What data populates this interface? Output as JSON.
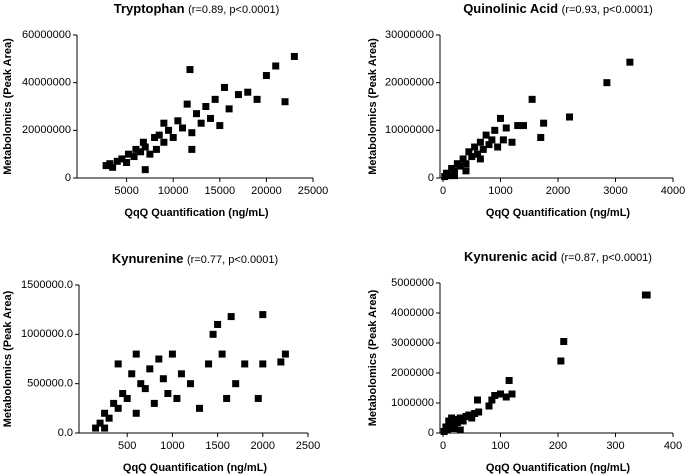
{
  "chart_data": [
    {
      "type": "scatter",
      "title": "Tryptophan",
      "subtitle": "(r=0.89, p<0.0001)",
      "x_label": "QqQ Quantification (ng/mL)",
      "y_label": "Metabolomics (Peak Area)",
      "xlim": [
        0,
        25000
      ],
      "xticks": [
        5000,
        10000,
        15000,
        20000,
        25000
      ],
      "ylim": [
        0,
        60000000
      ],
      "yticks": [
        0,
        20000000,
        40000000,
        60000000
      ],
      "color": "#000000",
      "x": [
        2800,
        3200,
        3500,
        4000,
        4500,
        5000,
        5200,
        5800,
        6000,
        6500,
        6800,
        7000,
        7500,
        8000,
        8200,
        8500,
        9000,
        9500,
        10000,
        10500,
        11000,
        11500,
        11800,
        12000,
        12500,
        13000,
        13500,
        14000,
        14500,
        15000,
        15500,
        16000,
        17000,
        18000,
        19000,
        20000,
        21000,
        22000,
        23000,
        7000,
        12000,
        9000
      ],
      "y": [
        5200000,
        6000000,
        4500000,
        7000000,
        8000000,
        6500000,
        10000000,
        9000000,
        12000000,
        11000000,
        15000000,
        13000000,
        10000000,
        17000000,
        12000000,
        18000000,
        15000000,
        20000000,
        17000000,
        24000000,
        21000000,
        31000000,
        45500000,
        19000000,
        27000000,
        23000000,
        30000000,
        25000000,
        33000000,
        22000000,
        38000000,
        29000000,
        35000000,
        36000000,
        33000000,
        43000000,
        47000000,
        32000000,
        51000000,
        3500000,
        12000000,
        23000000
      ]
    },
    {
      "type": "scatter",
      "title": "Quinolinic Acid",
      "subtitle": "(r=0.93, p<0.0001)",
      "x_label": "QqQ Quantification (ng/mL)",
      "y_label": "Metabolomics (Peak Area)",
      "xlim": [
        0,
        4000
      ],
      "xticks": [
        0,
        1000,
        2000,
        3000,
        4000
      ],
      "ylim": [
        0,
        30000000
      ],
      "yticks": [
        0,
        10000000,
        20000000,
        30000000
      ],
      "color": "#000000",
      "x": [
        30,
        60,
        100,
        150,
        200,
        250,
        300,
        350,
        400,
        450,
        500,
        550,
        600,
        650,
        700,
        750,
        800,
        850,
        900,
        950,
        1000,
        1050,
        1100,
        1200,
        1300,
        1400,
        1550,
        1700,
        1750,
        2200,
        2850,
        3250,
        200,
        400,
        650
      ],
      "y": [
        300000,
        1000000,
        500000,
        2000000,
        1500000,
        3000000,
        2500000,
        4000000,
        3000000,
        5500000,
        4500000,
        6500000,
        5000000,
        7500000,
        6000000,
        9000000,
        7000000,
        8000000,
        10000000,
        6500000,
        12500000,
        8000000,
        10500000,
        7500000,
        11000000,
        11000000,
        16500000,
        8500000,
        11500000,
        12800000,
        20000000,
        24300000,
        500000,
        1500000,
        4000000
      ]
    },
    {
      "type": "scatter",
      "title": "Kynurenine",
      "subtitle": "(r=0.77, p<0.0001)",
      "x_label": "QqQ Quantification (ng/mL)",
      "y_label": "Metabolomics (Peak Area)",
      "xlim": [
        0,
        2500
      ],
      "xticks": [
        500,
        1000,
        1500,
        2000,
        2500
      ],
      "ylim": [
        0,
        1500000
      ],
      "yticks": [
        {
          "value": 0,
          "label": "0.0"
        },
        {
          "value": 500000,
          "label": "500000.0"
        },
        {
          "value": 1000000,
          "label": "1000000.0"
        },
        {
          "value": 1500000,
          "label": "1500000.0"
        }
      ],
      "color": "#000000",
      "x": [
        150,
        200,
        250,
        300,
        350,
        400,
        450,
        500,
        550,
        600,
        650,
        700,
        750,
        800,
        850,
        900,
        950,
        1000,
        1050,
        1100,
        1200,
        1300,
        1400,
        1450,
        1500,
        1550,
        1600,
        1650,
        1700,
        1800,
        1950,
        2000,
        2000,
        2200,
        2250,
        400,
        600,
        250
      ],
      "y": [
        50000,
        100000,
        200000,
        150000,
        300000,
        250000,
        400000,
        350000,
        600000,
        200000,
        500000,
        450000,
        650000,
        300000,
        750000,
        550000,
        400000,
        800000,
        350000,
        600000,
        500000,
        250000,
        700000,
        1000000,
        1100000,
        800000,
        350000,
        1180000,
        500000,
        700000,
        350000,
        1200000,
        700000,
        720000,
        800000,
        700000,
        800000,
        50000
      ]
    },
    {
      "type": "scatter",
      "title": "Kynurenic acid",
      "subtitle": "(r=0.87, p<0.0001)",
      "x_label": "QqQ Quantification (ng/mL)",
      "y_label": "Metabolomics (Peak Area)",
      "xlim": [
        0,
        400
      ],
      "xticks": [
        0,
        100,
        200,
        300,
        400
      ],
      "ylim": [
        0,
        5000000
      ],
      "yticks": [
        0,
        1000000,
        2000000,
        3000000,
        4000000,
        5000000
      ],
      "color": "#000000",
      "x": [
        2,
        5,
        8,
        10,
        12,
        15,
        18,
        20,
        25,
        30,
        35,
        40,
        45,
        50,
        55,
        60,
        62,
        80,
        85,
        90,
        100,
        110,
        115,
        120,
        205,
        210,
        352,
        355,
        30,
        20
      ],
      "y": [
        50000,
        200000,
        100000,
        400000,
        250000,
        500000,
        300000,
        450000,
        350000,
        500000,
        400000,
        550000,
        600000,
        500000,
        650000,
        1100000,
        700000,
        900000,
        1100000,
        1250000,
        1300000,
        1200000,
        1750000,
        1300000,
        2400000,
        3050000,
        4600000,
        4600000,
        100000,
        150000
      ]
    }
  ]
}
